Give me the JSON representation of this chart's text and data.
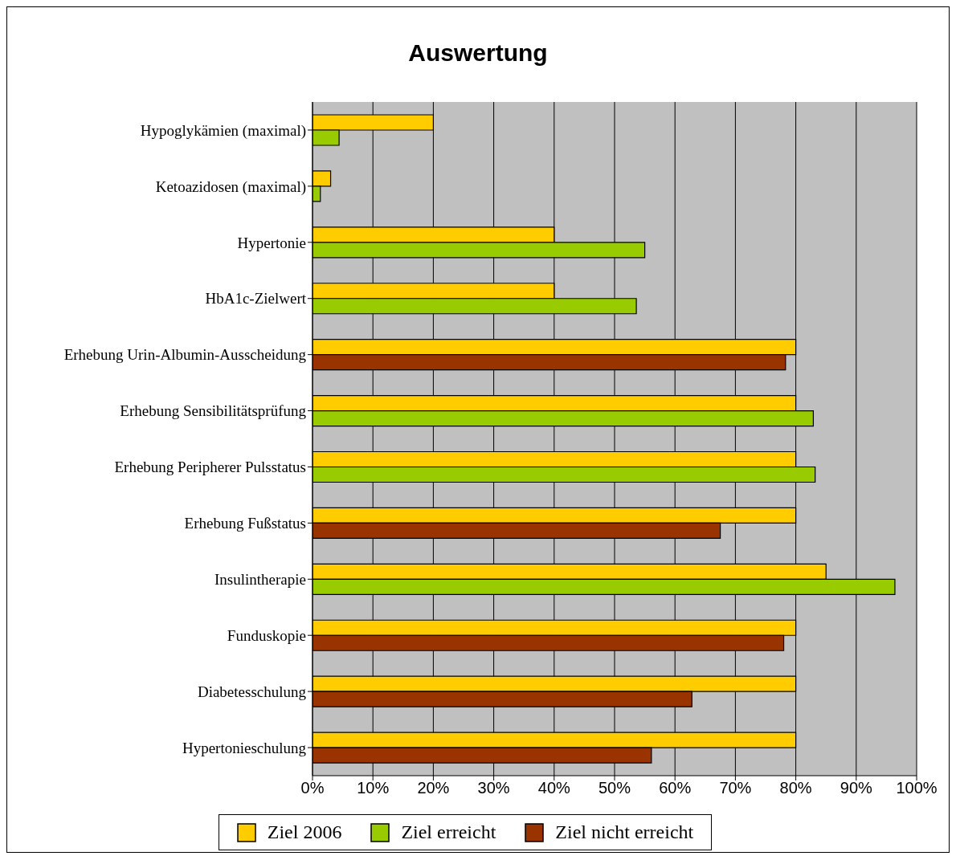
{
  "chart_data": {
    "type": "bar",
    "orientation": "horizontal",
    "title": "Auswertung",
    "categories": [
      "Hypoglykämien (maximal)",
      "Ketoazidosen (maximal)",
      "Hypertonie",
      "HbA1c-Zielwert",
      "Erhebung Urin-Albumin-Ausscheidung",
      "Erhebung Sensibilitätsprüfung",
      "Erhebung Peripherer Pulsstatus",
      "Erhebung Fußstatus",
      "Insulintherapie",
      "Funduskopie",
      "Diabetesschulung",
      "Hypertonieschulung"
    ],
    "series": [
      {
        "name": "Ziel 2006",
        "color": "#ffcc00",
        "values": [
          20,
          3,
          40,
          40,
          80,
          80,
          80,
          80,
          85,
          80,
          80,
          80
        ]
      },
      {
        "name": "Ziel erreicht",
        "color": "#99cc00",
        "values": [
          4.4,
          1.3,
          55,
          53.6,
          null,
          82.9,
          83.2,
          null,
          96.4,
          null,
          null,
          null
        ]
      },
      {
        "name": "Ziel nicht erreicht",
        "color": "#993300",
        "values": [
          null,
          null,
          null,
          null,
          78.3,
          null,
          null,
          67.5,
          null,
          78,
          62.8,
          56.1
        ]
      }
    ],
    "xlim": [
      0,
      100
    ],
    "xticks": [
      {
        "value": 0,
        "label": "0%"
      },
      {
        "value": 10,
        "label": "10%"
      },
      {
        "value": 20,
        "label": "20%"
      },
      {
        "value": 30,
        "label": "30%"
      },
      {
        "value": 40,
        "label": "40%"
      },
      {
        "value": 50,
        "label": "50%"
      },
      {
        "value": 60,
        "label": "60%"
      },
      {
        "value": 70,
        "label": "70%"
      },
      {
        "value": 80,
        "label": "80%"
      },
      {
        "value": 90,
        "label": "90%"
      },
      {
        "value": 100,
        "label": "100%"
      }
    ],
    "grid": "x",
    "legend": "bottom"
  }
}
